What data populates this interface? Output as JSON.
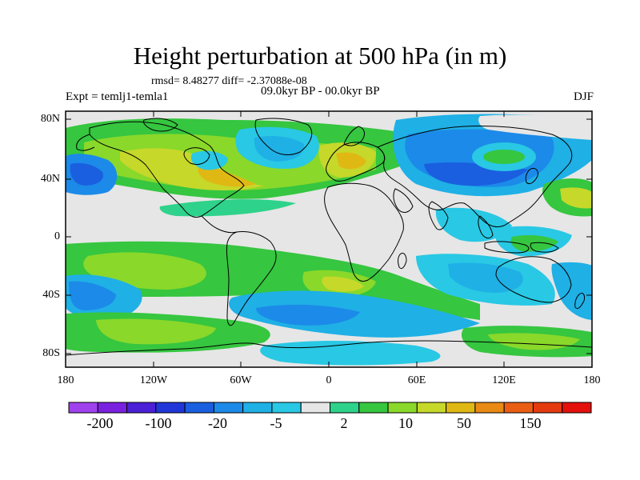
{
  "title": "Height perturbation at 500 hPa (in m)",
  "stats": "rmsd= 8.48277 diff= -2.37088e-08",
  "left_string": "Expt = temlj1-temla1",
  "center_string": "09.0kyr BP - 00.0kyr BP",
  "right_string": "DJF",
  "map": {
    "projection": "cylindrical equidistant",
    "lat_ticks": [
      "80N",
      "40N",
      "0",
      "40S",
      "80S"
    ],
    "lon_ticks": [
      "180",
      "120W",
      "60W",
      "0",
      "60E",
      "120E",
      "180"
    ],
    "ocean_land_background": "#e6e6e6"
  },
  "colorbar": {
    "colors": [
      "#a041ee",
      "#7a21e0",
      "#4a1fd6",
      "#2136d8",
      "#1a5fe0",
      "#1c8ae8",
      "#1fb0e6",
      "#29c8e4",
      "#e6e6e6",
      "#2fd28a",
      "#36c640",
      "#8ad82a",
      "#c6d82a",
      "#e0b814",
      "#e88a14",
      "#ea5e14",
      "#e43a10",
      "#e4100c"
    ],
    "labels": [
      "-200",
      "-100",
      "-20",
      "-5",
      "2",
      "10",
      "50",
      "150"
    ]
  }
}
